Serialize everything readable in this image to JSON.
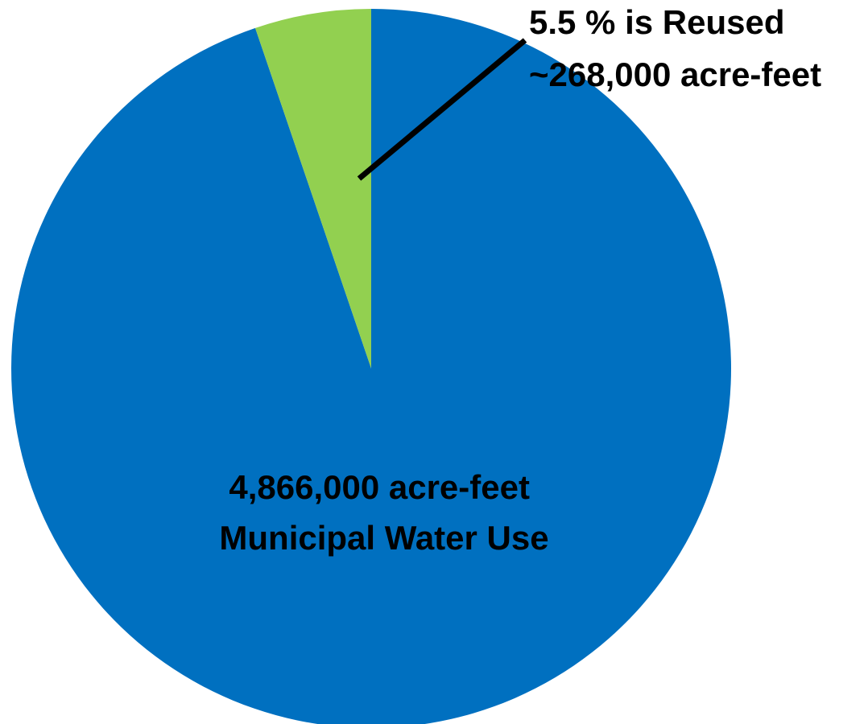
{
  "chart_data": {
    "type": "pie",
    "slices": [
      {
        "label": "Municipal Water Use",
        "value_label": "4,866,000 acre-feet",
        "value": 4866000,
        "color": "#0070C0"
      },
      {
        "label": "5.5 % is Reused",
        "value_label": "~268,000 acre-feet",
        "value": 268000,
        "percent": 5.5,
        "color": "#92D050"
      }
    ],
    "annotations": {
      "main": {
        "line1": "4,866,000 acre-feet",
        "line2": "Municipal Water Use"
      },
      "callout": {
        "line1": "5.5 % is Reused",
        "line2": "~268,000 acre-feet"
      }
    },
    "title": "",
    "legend": "none"
  }
}
